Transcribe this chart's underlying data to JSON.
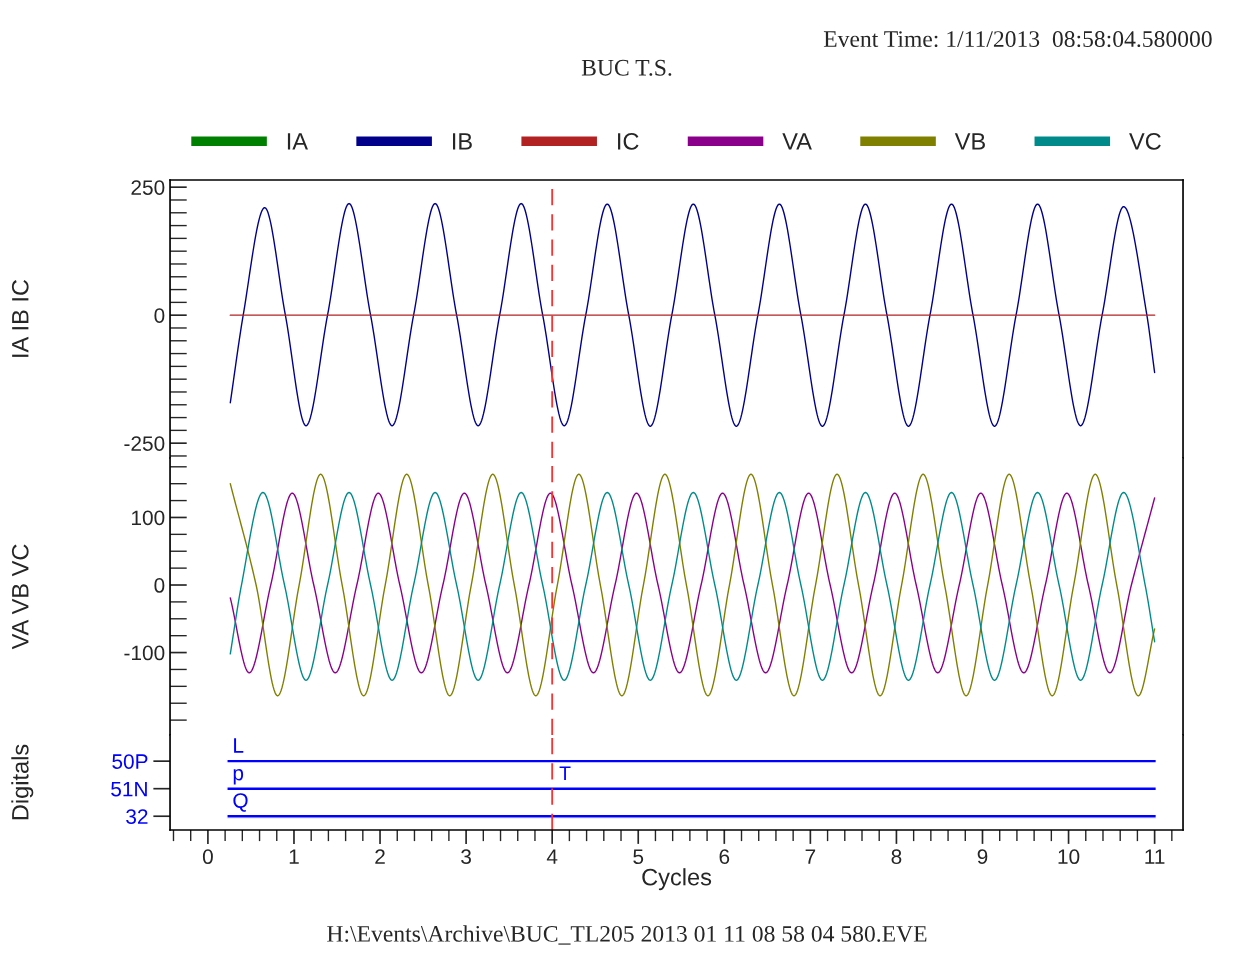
{
  "chart_data": [
    {
      "type": "line",
      "title": "BUC T.S.",
      "subtitle": "Event Time: 1/11/2013  08:58:04.580000",
      "ylabel": "IA IB IC",
      "xlim": [
        -0.44,
        11.33
      ],
      "xticks": [
        0,
        1,
        2,
        3,
        4,
        5,
        6,
        7,
        8,
        9,
        10,
        11
      ],
      "ylim": [
        -279,
        264
      ],
      "yticks": [
        250,
        0,
        -250
      ],
      "tick_labels": "y",
      "legend": "top",
      "ref_lines": [
        {
          "axis": "x",
          "value": 4,
          "color": "#ff3030",
          "line_style": "dashed"
        }
      ],
      "series": [
        {
          "name": "IA",
          "color": "#008000"
        },
        {
          "name": "IB",
          "color": "#00008b",
          "x": [
            0.26,
            0.41,
            0.66,
            0.9,
            1.14,
            1.39,
            1.64,
            1.89,
            2.14,
            2.39,
            2.64,
            2.89,
            3.14,
            3.39,
            3.64,
            3.89,
            4.14,
            4.39,
            4.64,
            4.89,
            5.14,
            5.39,
            5.64,
            5.89,
            6.14,
            6.39,
            6.64,
            6.89,
            7.14,
            7.39,
            7.64,
            7.89,
            8.14,
            8.39,
            8.64,
            8.89,
            9.14,
            9.39,
            9.64,
            9.89,
            10.14,
            10.39,
            10.64,
            10.91,
            11.0
          ],
          "values": [
            -171,
            0,
            210,
            0,
            -216,
            0,
            218,
            0,
            -216,
            0,
            218,
            0,
            -216,
            0,
            218,
            0,
            -216,
            0,
            217,
            0,
            -217,
            0,
            217,
            0,
            -217,
            0,
            217,
            0,
            -217,
            0,
            217,
            0,
            -217,
            0,
            217,
            0,
            -217,
            0,
            217,
            0,
            -216,
            0,
            212,
            0,
            -112
          ]
        },
        {
          "name": "IC",
          "color": "#b22222",
          "x": [
            0.26,
            11.0
          ],
          "values": [
            0,
            0
          ]
        }
      ]
    },
    {
      "type": "line",
      "ylabel": "VA VB VC",
      "xlim": [
        -0.44,
        11.33
      ],
      "xticks": [
        0,
        1,
        2,
        3,
        4,
        5,
        6,
        7,
        8,
        9,
        10,
        11
      ],
      "ylim": [
        -222,
        188
      ],
      "yticks": [
        100,
        0,
        -100
      ],
      "tick_labels": "y",
      "legend": "top",
      "ref_lines": [
        {
          "axis": "x",
          "value": 4,
          "color": "#ff3030",
          "line_style": "dashed"
        }
      ],
      "series": [
        {
          "name": "VA",
          "color": "#8b008b",
          "x": [
            0.26,
            0.48,
            0.73,
            0.98,
            1.23,
            1.48,
            1.73,
            1.98,
            2.23,
            2.48,
            2.73,
            2.98,
            3.23,
            3.48,
            3.73,
            3.98,
            4.23,
            4.48,
            4.73,
            4.98,
            5.23,
            5.48,
            5.73,
            5.98,
            6.23,
            6.48,
            6.73,
            6.98,
            7.23,
            7.48,
            7.73,
            7.98,
            8.23,
            8.48,
            8.73,
            8.98,
            9.23,
            9.48,
            9.73,
            9.98,
            10.23,
            10.48,
            10.73,
            11.0
          ],
          "values": [
            -19,
            -130,
            0,
            136,
            0,
            -130,
            0,
            136,
            0,
            -130,
            0,
            136,
            0,
            -130,
            0,
            136,
            0,
            -130,
            0,
            136,
            0,
            -130,
            0,
            136,
            0,
            -130,
            0,
            136,
            0,
            -130,
            0,
            136,
            0,
            -130,
            0,
            136,
            0,
            -130,
            0,
            136,
            0,
            -130,
            0,
            129
          ]
        },
        {
          "name": "VB",
          "color": "#808000",
          "x": [
            0.26,
            0.56,
            0.81,
            1.06,
            1.31,
            1.56,
            1.81,
            2.06,
            2.31,
            2.56,
            2.81,
            3.06,
            3.31,
            3.56,
            3.81,
            4.06,
            4.31,
            4.56,
            4.81,
            5.06,
            5.31,
            5.56,
            5.81,
            6.06,
            6.31,
            6.56,
            6.81,
            7.06,
            7.31,
            7.56,
            7.81,
            8.06,
            8.31,
            8.56,
            8.81,
            9.06,
            9.31,
            9.56,
            9.81,
            10.06,
            10.31,
            10.56,
            10.81,
            11.0
          ],
          "values": [
            150,
            0,
            -164,
            0,
            164,
            0,
            -164,
            0,
            164,
            0,
            -164,
            0,
            164,
            0,
            -164,
            0,
            164,
            0,
            -164,
            0,
            164,
            0,
            -164,
            0,
            164,
            0,
            -164,
            0,
            164,
            0,
            -164,
            0,
            164,
            0,
            -164,
            0,
            164,
            0,
            -164,
            0,
            164,
            0,
            -164,
            -65
          ]
        },
        {
          "name": "VC",
          "color": "#008b8b",
          "x": [
            0.26,
            0.39,
            0.64,
            0.89,
            1.14,
            1.39,
            1.64,
            1.89,
            2.14,
            2.39,
            2.64,
            2.89,
            3.14,
            3.39,
            3.64,
            3.89,
            4.14,
            4.39,
            4.64,
            4.89,
            5.14,
            5.39,
            5.64,
            5.89,
            6.14,
            6.39,
            6.64,
            6.89,
            7.14,
            7.39,
            7.64,
            7.89,
            8.14,
            8.39,
            8.64,
            8.89,
            9.14,
            9.39,
            9.64,
            9.89,
            10.14,
            10.39,
            10.64,
            10.89,
            11.0
          ],
          "values": [
            -102,
            0,
            137,
            0,
            -141,
            0,
            137,
            0,
            -141,
            0,
            137,
            0,
            -141,
            0,
            137,
            0,
            -141,
            0,
            137,
            0,
            -141,
            0,
            137,
            0,
            -141,
            0,
            137,
            0,
            -141,
            0,
            137,
            0,
            -141,
            0,
            137,
            0,
            -141,
            0,
            137,
            0,
            -141,
            0,
            137,
            0,
            -84
          ]
        }
      ]
    },
    {
      "type": "bar",
      "orientation": "horizontal",
      "ylabel": "Digitals",
      "xlabel": "Cycles",
      "xlim": [
        -0.44,
        11.33
      ],
      "xticks": [
        0,
        1,
        2,
        3,
        4,
        5,
        6,
        7,
        8,
        9,
        10,
        11
      ],
      "categories": [
        "50P",
        "51N",
        "32"
      ],
      "base": [
        0.22,
        0.22,
        0.22
      ],
      "values": [
        10.8,
        10.8,
        10.8
      ],
      "value_labels": [
        "L",
        "p",
        "Q"
      ],
      "color": "#0000ff",
      "ref_lines": [
        {
          "axis": "x",
          "value": 4,
          "color": "#ff3030",
          "line_style": "dashed",
          "label": "T"
        }
      ],
      "annotations": [
        "H:\\Events\\Archive\\BUC_TL205 2013 01 11 08 58 04 580.EVE"
      ]
    }
  ]
}
